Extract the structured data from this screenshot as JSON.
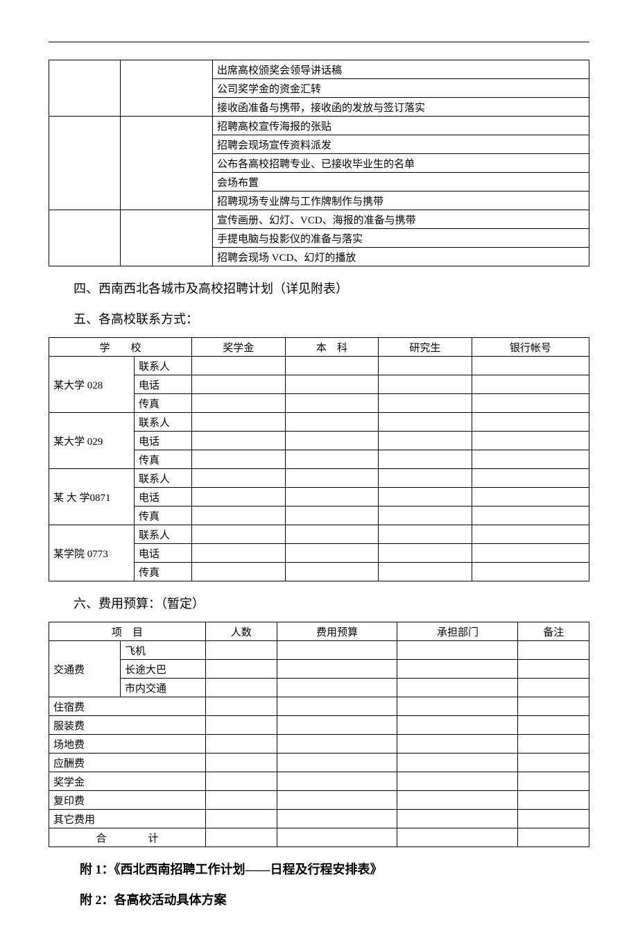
{
  "tasks_table": {
    "rows": [
      "出席高校颁奖会领导讲话稿",
      "公司奖学金的资金汇转",
      "接收函准备与携带，接收函的发放与签订落实",
      "招聘高校宣传海报的张贴",
      "招聘会现场宣传资料派发",
      "公布各高校招聘专业、已接收毕业生的名单",
      "会场布置",
      "招聘现场专业牌与工作牌制作与携带",
      "宣传画册、幻灯、VCD、海报的准备与携带",
      "手提电脑与投影仪的准备与落实",
      "招聘会现场 VCD、幻灯的播放"
    ],
    "group_sizes": [
      3,
      5,
      3
    ]
  },
  "heading4": "四、西南西北各城市及高校招聘计划（详见附表）",
  "heading5": "五、各高校联系方式：",
  "contact_table": {
    "headers": [
      "学　　校",
      "奖学金",
      "本　科",
      "研究生",
      "银行帐号"
    ],
    "row_types": [
      "联系人",
      "电话",
      "传真"
    ],
    "schools": [
      "某大学 028",
      "某大学 029",
      "某 大 学0871",
      "某学院 0773"
    ]
  },
  "heading6": "六、费用预算：（暂定）",
  "budget_table": {
    "headers": [
      "项　目",
      "人数",
      "费用预算",
      "承担部门",
      "备注"
    ],
    "transport_label": "交通费",
    "transport_rows": [
      "飞机",
      "长途大巴",
      "市内交通"
    ],
    "simple_rows": [
      "住宿费",
      "服装费",
      "场地费",
      "应酬费",
      "奖学金",
      "复印费",
      "其它费用"
    ],
    "total_label": "合　　　　计"
  },
  "attach1": "附 1：《西北西南招聘工作计划——日程及行程安排表》",
  "attach2": "附 2：各高校活动具体方案"
}
